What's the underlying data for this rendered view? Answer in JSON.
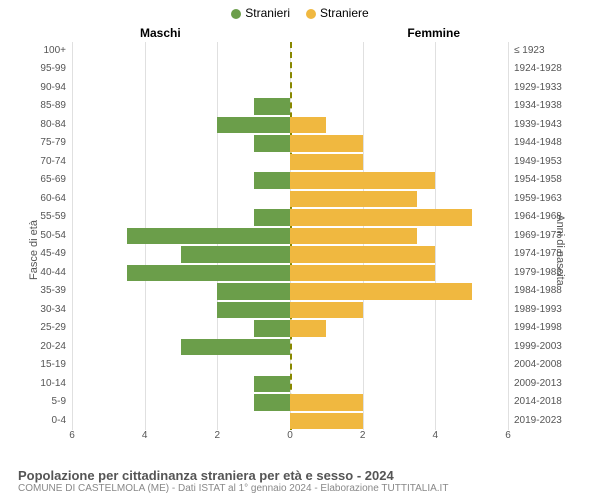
{
  "chart": {
    "type": "population-pyramid",
    "legend": [
      {
        "label": "Stranieri",
        "color": "#6b9e4a"
      },
      {
        "label": "Straniere",
        "color": "#f0b840"
      }
    ],
    "column_titles": {
      "left": "Maschi",
      "right": "Femmine"
    },
    "yaxis_left_label": "Fasce di età",
    "yaxis_right_label": "Anni di nascita",
    "xlim": 6,
    "xticks": [
      6,
      4,
      2,
      0,
      2,
      4,
      6
    ],
    "grid_color": "#e0e0e0",
    "center_line_color": "#888800",
    "background_color": "#ffffff",
    "bar_colors": {
      "male": "#6b9e4a",
      "female": "#f0b840"
    },
    "label_fontsize": 10,
    "rows": [
      {
        "age": "100+",
        "birth": "≤ 1923",
        "male": 0,
        "female": 0
      },
      {
        "age": "95-99",
        "birth": "1924-1928",
        "male": 0,
        "female": 0
      },
      {
        "age": "90-94",
        "birth": "1929-1933",
        "male": 0,
        "female": 0
      },
      {
        "age": "85-89",
        "birth": "1934-1938",
        "male": 1,
        "female": 0
      },
      {
        "age": "80-84",
        "birth": "1939-1943",
        "male": 2,
        "female": 1
      },
      {
        "age": "75-79",
        "birth": "1944-1948",
        "male": 1,
        "female": 2
      },
      {
        "age": "70-74",
        "birth": "1949-1953",
        "male": 0,
        "female": 2
      },
      {
        "age": "65-69",
        "birth": "1954-1958",
        "male": 1,
        "female": 4
      },
      {
        "age": "60-64",
        "birth": "1959-1963",
        "male": 0,
        "female": 3.5
      },
      {
        "age": "55-59",
        "birth": "1964-1968",
        "male": 1,
        "female": 5
      },
      {
        "age": "50-54",
        "birth": "1969-1973",
        "male": 4.5,
        "female": 3.5
      },
      {
        "age": "45-49",
        "birth": "1974-1978",
        "male": 3,
        "female": 4
      },
      {
        "age": "40-44",
        "birth": "1979-1983",
        "male": 4.5,
        "female": 4
      },
      {
        "age": "35-39",
        "birth": "1984-1988",
        "male": 2,
        "female": 5
      },
      {
        "age": "30-34",
        "birth": "1989-1993",
        "male": 2,
        "female": 2
      },
      {
        "age": "25-29",
        "birth": "1994-1998",
        "male": 1,
        "female": 1
      },
      {
        "age": "20-24",
        "birth": "1999-2003",
        "male": 3,
        "female": 0
      },
      {
        "age": "15-19",
        "birth": "2004-2008",
        "male": 0,
        "female": 0
      },
      {
        "age": "10-14",
        "birth": "2009-2013",
        "male": 1,
        "female": 0
      },
      {
        "age": "5-9",
        "birth": "2014-2018",
        "male": 1,
        "female": 2
      },
      {
        "age": "0-4",
        "birth": "2019-2023",
        "male": 0,
        "female": 2
      }
    ]
  },
  "footer": {
    "title": "Popolazione per cittadinanza straniera per età e sesso - 2024",
    "subtitle": "COMUNE DI CASTELMOLA (ME) - Dati ISTAT al 1° gennaio 2024 - Elaborazione TUTTITALIA.IT"
  }
}
